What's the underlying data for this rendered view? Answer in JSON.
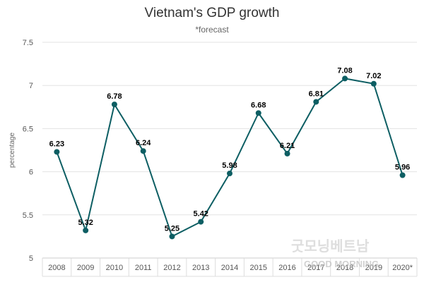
{
  "chart_data": {
    "type": "line",
    "title": "Vietnam's GDP growth",
    "subtitle": "*forecast",
    "ylabel": "percentage",
    "xlabel": "",
    "categories": [
      "2008",
      "2009",
      "2010",
      "2011",
      "2012",
      "2013",
      "2014",
      "2015",
      "2016",
      "2017",
      "2018",
      "2019",
      "2020*"
    ],
    "series": [
      {
        "values": [
          6.23,
          5.32,
          6.78,
          6.24,
          5.25,
          5.42,
          5.98,
          6.68,
          6.21,
          6.81,
          7.08,
          7.02,
          5.96
        ]
      }
    ],
    "data_labels": [
      "6.23",
      "5.32",
      "6.78",
      "6.24",
      "5.25",
      "5.42",
      "5.98",
      "6.68",
      "6.21",
      "6.81",
      "7.08",
      "7.02",
      "5.96"
    ],
    "yticks": [
      "5",
      "5.5",
      "6",
      "6.5",
      "7",
      "7.5"
    ],
    "ylim": [
      5,
      7.5
    ],
    "grid": true,
    "line_color": "#0d5e63"
  },
  "watermark": {
    "text": "굿모닝베트남",
    "text2": "GOOD MORNING"
  }
}
